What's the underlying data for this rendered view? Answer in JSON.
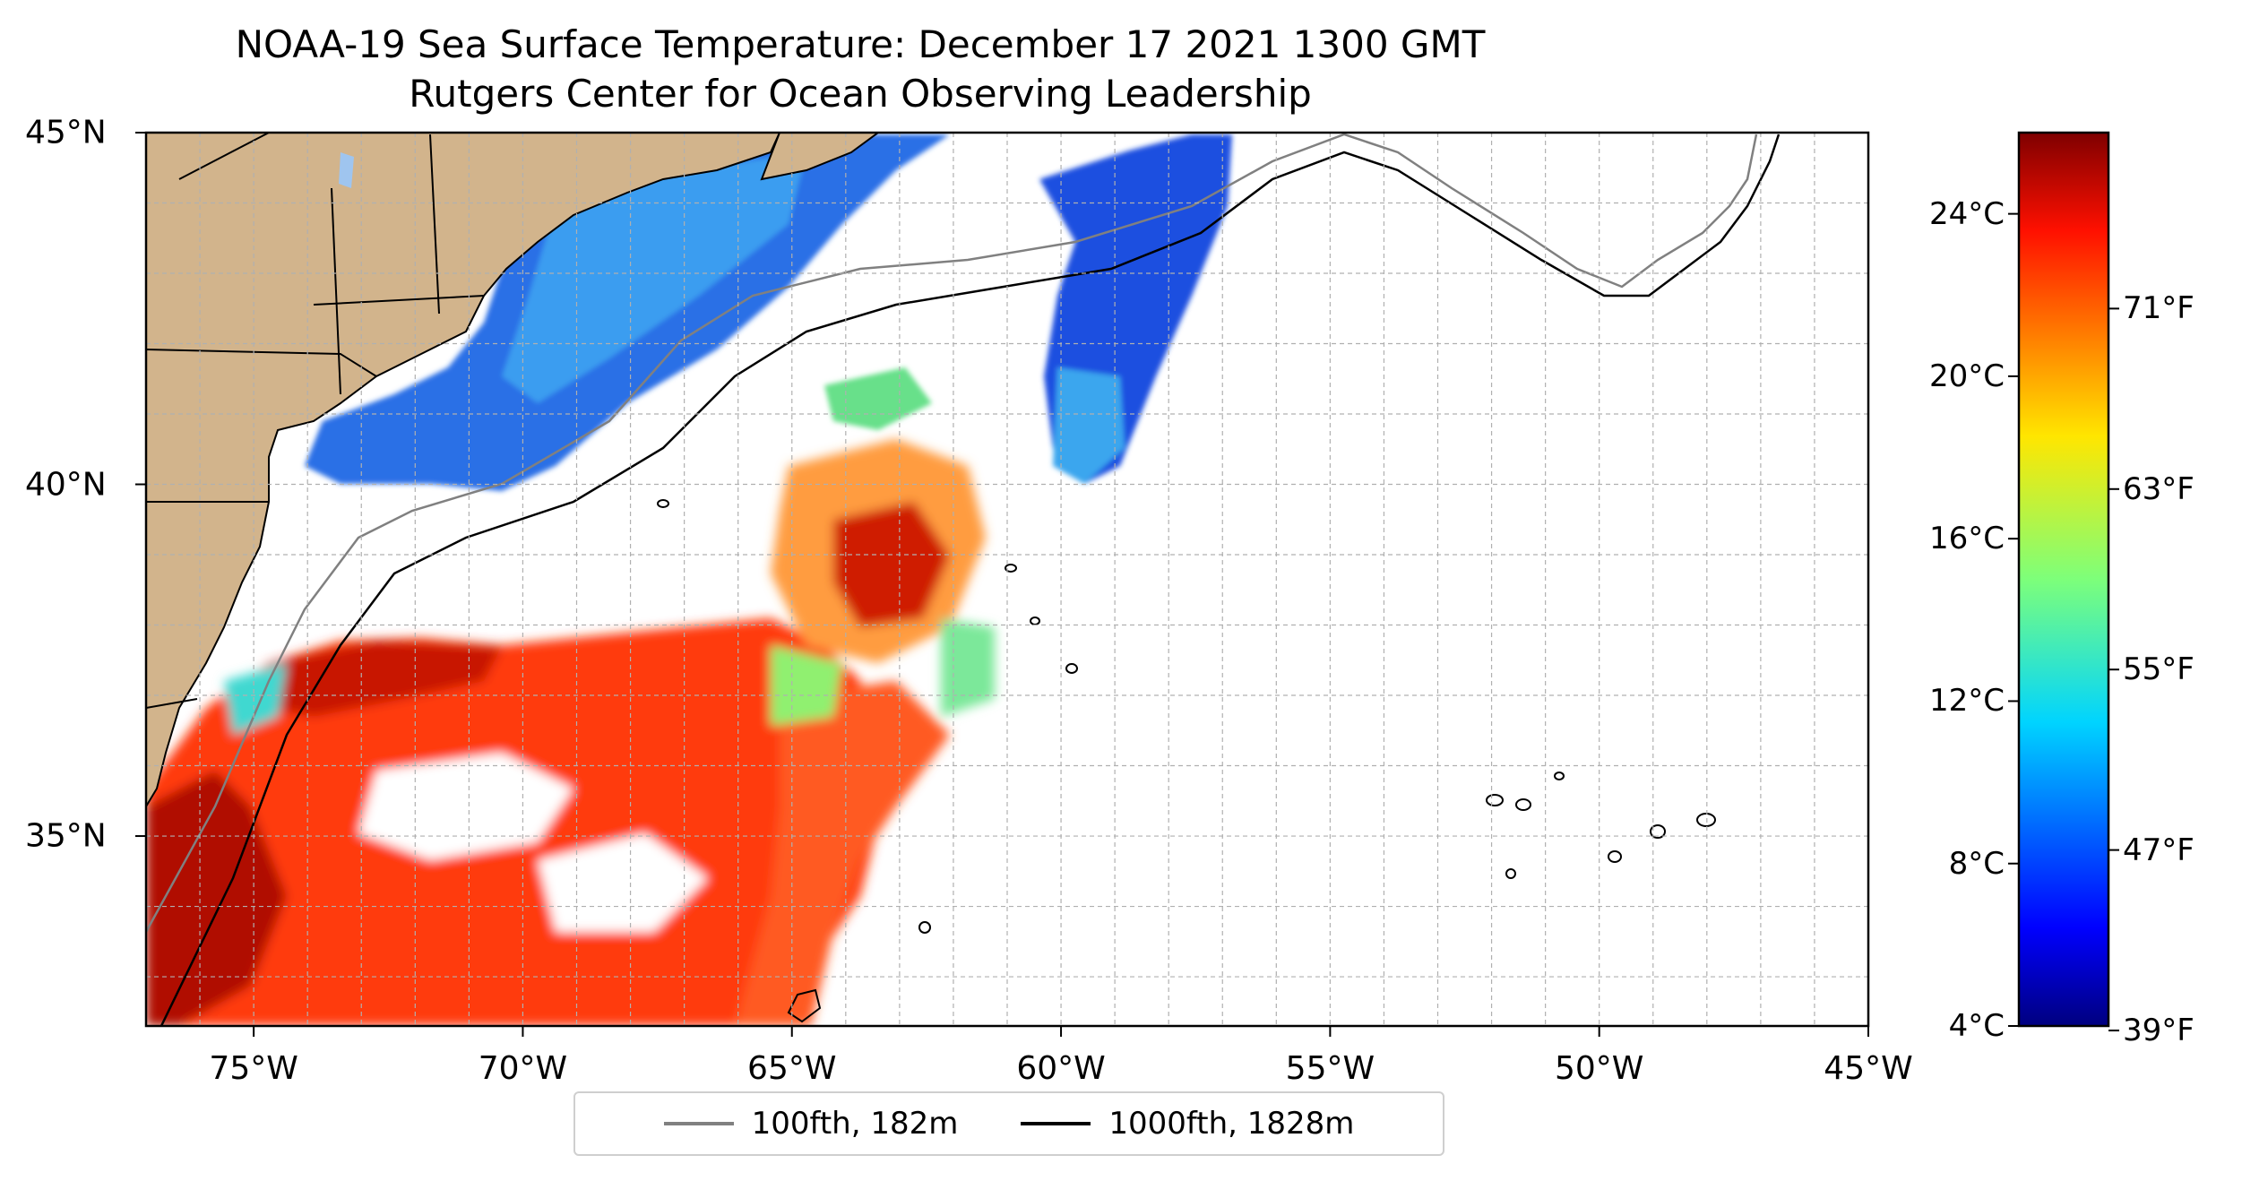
{
  "title": "NOAA-19 Sea Surface Temperature: December 17 2021 1300 GMT",
  "subtitle": "Rutgers Center for Ocean Observing Leadership",
  "map": {
    "lon_range": [
      -77,
      -45
    ],
    "lat_range": [
      32.3,
      45
    ],
    "lon_ticks": [
      {
        "value": -75,
        "label": "75°W"
      },
      {
        "value": -70,
        "label": "70°W"
      },
      {
        "value": -65,
        "label": "65°W"
      },
      {
        "value": -60,
        "label": "60°W"
      },
      {
        "value": -55,
        "label": "55°W"
      },
      {
        "value": -50,
        "label": "50°W"
      },
      {
        "value": -45,
        "label": "45°W"
      }
    ],
    "lat_ticks": [
      {
        "value": 45,
        "label": "45°N"
      },
      {
        "value": 40,
        "label": "40°N"
      },
      {
        "value": 35,
        "label": "35°N"
      }
    ],
    "grid": true,
    "land_color": "#d2b48c",
    "ocean_color": "#ffffff"
  },
  "colorbar": {
    "colormap": "jet",
    "range_c": [
      4,
      26
    ],
    "celsius_ticks": [
      {
        "value": 4,
        "label": "4°C"
      },
      {
        "value": 8,
        "label": "8°C"
      },
      {
        "value": 12,
        "label": "12°C"
      },
      {
        "value": 16,
        "label": "16°C"
      },
      {
        "value": 20,
        "label": "20°C"
      },
      {
        "value": 24,
        "label": "24°C"
      }
    ],
    "fahrenheit_ticks": [
      {
        "value": 39,
        "label": "39°F"
      },
      {
        "value": 47,
        "label": "47°F"
      },
      {
        "value": 55,
        "label": "55°F"
      },
      {
        "value": 63,
        "label": "63°F"
      },
      {
        "value": 71,
        "label": "71°F"
      }
    ]
  },
  "legend": {
    "placement": "bottom-center",
    "items": [
      {
        "label": "100fth, 182m",
        "color": "#808080"
      },
      {
        "label": "1000fth, 1828m",
        "color": "#000000"
      }
    ]
  }
}
